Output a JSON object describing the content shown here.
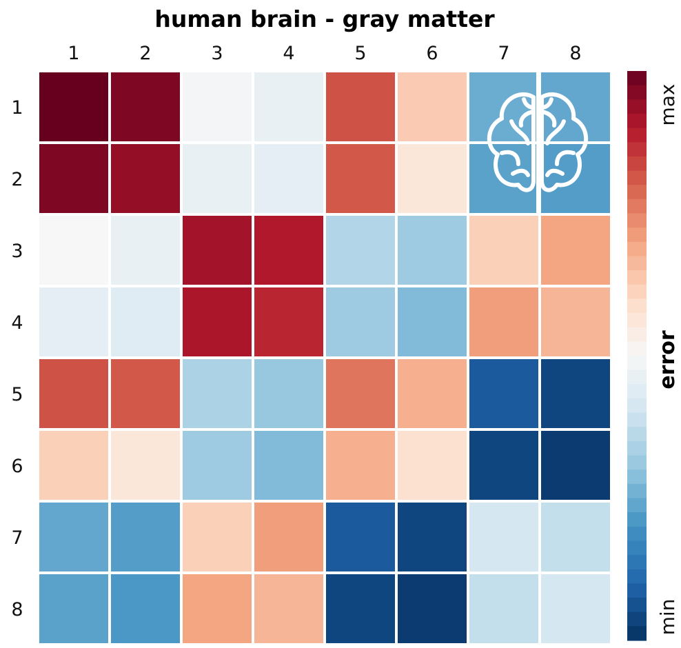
{
  "chart_data": {
    "type": "heatmap",
    "title": "human brain - gray matter",
    "x_labels": [
      "1",
      "2",
      "3",
      "4",
      "5",
      "6",
      "7",
      "8"
    ],
    "y_labels": [
      "1",
      "2",
      "3",
      "4",
      "5",
      "6",
      "7",
      "8"
    ],
    "values": [
      [
        1.0,
        0.97,
        0.49,
        0.46,
        0.82,
        0.63,
        0.25,
        0.24
      ],
      [
        0.97,
        0.94,
        0.46,
        0.45,
        0.81,
        0.56,
        0.23,
        0.22
      ],
      [
        0.5,
        0.46,
        0.92,
        0.9,
        0.35,
        0.32,
        0.62,
        0.7
      ],
      [
        0.45,
        0.44,
        0.91,
        0.88,
        0.32,
        0.28,
        0.71,
        0.67
      ],
      [
        0.82,
        0.81,
        0.34,
        0.31,
        0.77,
        0.68,
        0.08,
        0.04
      ],
      [
        0.62,
        0.56,
        0.32,
        0.28,
        0.68,
        0.58,
        0.04,
        0.02
      ],
      [
        0.24,
        0.22,
        0.62,
        0.71,
        0.08,
        0.04,
        0.41,
        0.38
      ],
      [
        0.23,
        0.21,
        0.7,
        0.67,
        0.04,
        0.02,
        0.38,
        0.41
      ]
    ],
    "value_range": [
      0,
      1
    ],
    "colorbar": {
      "title": "error",
      "max_label": "max",
      "min_label": "min"
    },
    "colormap": [
      "#053061",
      "#2166ac",
      "#4393c3",
      "#92c5de",
      "#d1e5f0",
      "#f7f7f7",
      "#fddbc7",
      "#f4a582",
      "#d6604d",
      "#b2182b",
      "#67001f"
    ],
    "grid_color": "#ffffff",
    "overlay_icon": "brain-icon",
    "overlay_cell": "row 1-2, column 7-8"
  }
}
